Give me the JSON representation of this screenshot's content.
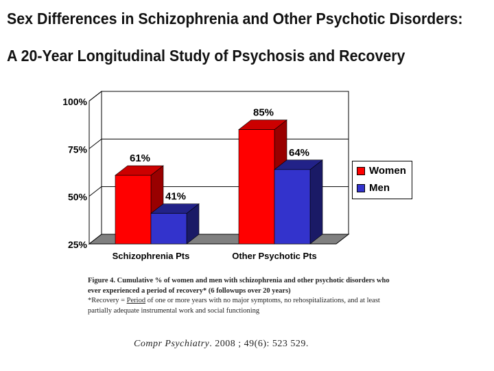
{
  "title": "Sex Differences in Schizophrenia and Other Psychotic Disorders:",
  "subtitle": "A 20-Year Longitudinal Study of Psychosis and Recovery",
  "chart_data": {
    "type": "bar",
    "style": "3d-clustered",
    "categories": [
      "Schizophrenia Pts",
      "Other Psychotic Pts"
    ],
    "series": [
      {
        "name": "Women",
        "values": [
          61,
          85
        ],
        "labels": [
          "61%",
          "85%"
        ],
        "color": "#ff0000"
      },
      {
        "name": "Men",
        "values": [
          41,
          64
        ],
        "labels": [
          "41%",
          "64%"
        ],
        "color": "#3333cc"
      }
    ],
    "yticks": [
      "25%",
      "50%",
      "75%",
      "100%"
    ],
    "ylim": [
      25,
      100
    ],
    "grid": true,
    "legend_position": "right"
  },
  "caption": {
    "line1_bold": "Figure 4. Cumulative % of women and men with schizophrenia and other psychotic disorders who ever experienced a period of recovery* (6 followups over 20 years)",
    "line2_prefix": "*Recovery = ",
    "line2_underlined": "Period",
    "line2_rest": " of one or more years with no major symptoms, no rehospitalizations, and at least partially adequate instrumental work and social functioning"
  },
  "citation": {
    "journal": "Compr Psychiatry",
    "rest": ". 2008 ; 49(6): 523 529."
  }
}
